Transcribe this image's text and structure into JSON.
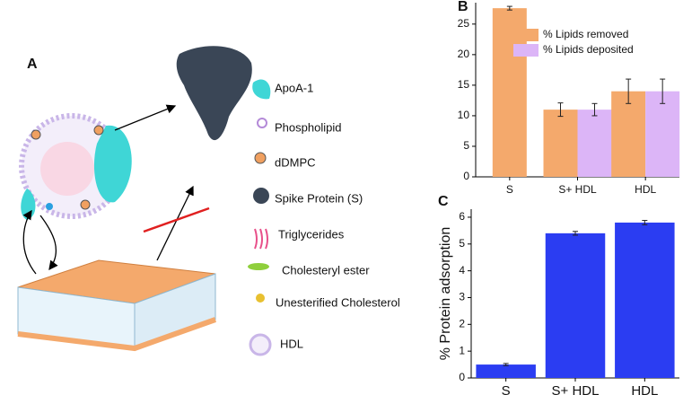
{
  "panel_a": {
    "label": "A",
    "legend": [
      "ApoA-1",
      "Phospholipid",
      "dDMPC",
      "Spike Protein (S)",
      "Triglycerides",
      "Cholesteryl ester",
      "Unesterified Cholesterol",
      "HDL"
    ]
  },
  "chart_data": [
    {
      "type": "bar",
      "panel_label": "B",
      "categories": [
        "S",
        "S+ HDL",
        "HDL"
      ],
      "series": [
        {
          "name": "% Lipids removed",
          "color": "#f4a96c",
          "values": [
            27.6,
            11,
            14
          ],
          "errors": [
            0.3,
            1.1,
            2
          ]
        },
        {
          "name": "% Lipids deposited",
          "color": "#dcb5f7",
          "values": [
            null,
            11,
            14
          ],
          "errors": [
            null,
            1,
            2
          ]
        }
      ],
      "ylim": [
        0,
        28.5
      ],
      "yticks": [
        0,
        5,
        10,
        15,
        20,
        25
      ],
      "legend": "upper center"
    },
    {
      "type": "bar",
      "panel_label": "C",
      "ylabel": "% Protein adsorption",
      "categories": [
        "S",
        "S+ HDL",
        "HDL"
      ],
      "values": [
        0.5,
        5.4,
        5.8
      ],
      "errors": [
        0.04,
        0.07,
        0.08
      ],
      "color": "#2b3df2",
      "ylim": [
        0,
        6.3
      ],
      "yticks": [
        0,
        1,
        2,
        3,
        4,
        5,
        6
      ]
    }
  ]
}
